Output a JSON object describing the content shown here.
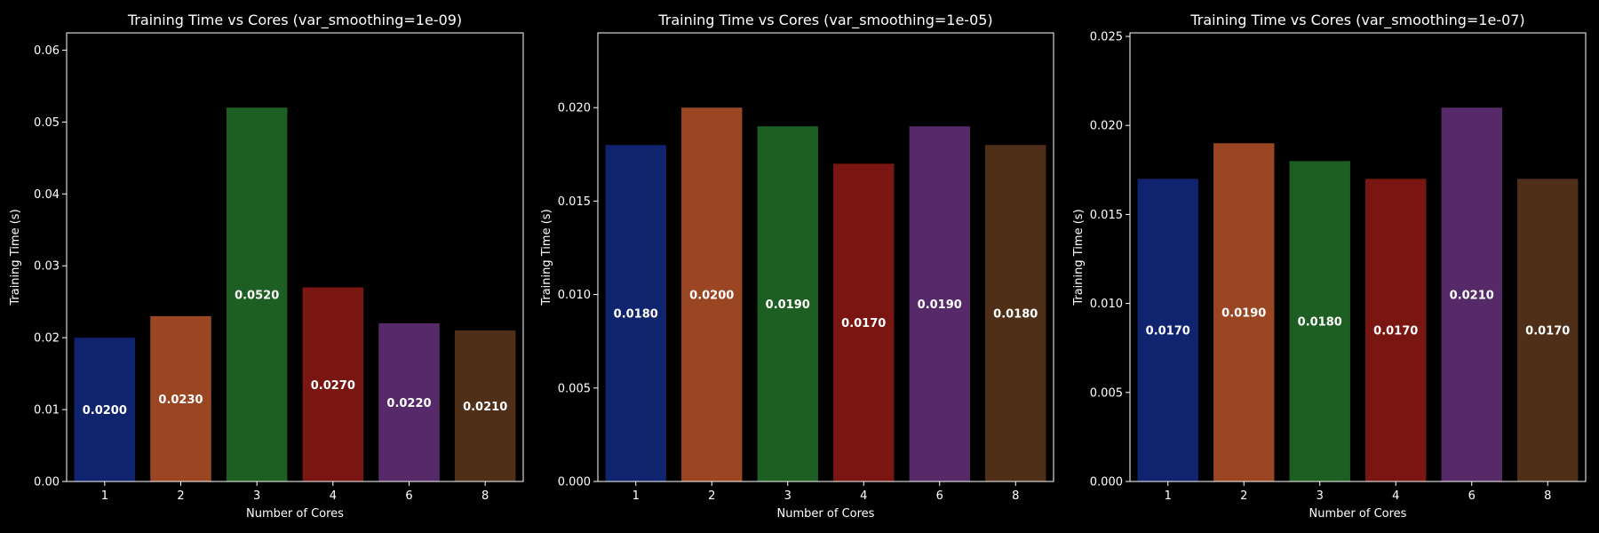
{
  "chart_data": [
    {
      "type": "bar",
      "title": "Training Time vs Cores (var_smoothing=1e-09)",
      "xlabel": "Number of Cores",
      "ylabel": "Training Time (s)",
      "categories": [
        "1",
        "2",
        "3",
        "4",
        "6",
        "8"
      ],
      "values": [
        0.02,
        0.023,
        0.052,
        0.027,
        0.022,
        0.021
      ],
      "data_labels": [
        "0.0200",
        "0.0230",
        "0.0520",
        "0.0270",
        "0.0220",
        "0.0210"
      ],
      "ylim": [
        0,
        0.0624
      ],
      "yticks": [
        0.0,
        0.01,
        0.02,
        0.03,
        0.04,
        0.05,
        0.06
      ],
      "ytick_labels": [
        "0.00",
        "0.01",
        "0.02",
        "0.03",
        "0.04",
        "0.05",
        "0.06"
      ],
      "grid": false
    },
    {
      "type": "bar",
      "title": "Training Time vs Cores (var_smoothing=1e-05)",
      "xlabel": "Number of Cores",
      "ylabel": "Training Time (s)",
      "categories": [
        "1",
        "2",
        "3",
        "4",
        "6",
        "8"
      ],
      "values": [
        0.018,
        0.02,
        0.019,
        0.017,
        0.019,
        0.018
      ],
      "data_labels": [
        "0.0180",
        "0.0200",
        "0.0190",
        "0.0170",
        "0.0190",
        "0.0180"
      ],
      "ylim": [
        0,
        0.024
      ],
      "yticks": [
        0.0,
        0.005,
        0.01,
        0.015,
        0.02
      ],
      "ytick_labels": [
        "0.000",
        "0.005",
        "0.010",
        "0.015",
        "0.020"
      ],
      "grid": false
    },
    {
      "type": "bar",
      "title": "Training Time vs Cores (var_smoothing=1e-07)",
      "xlabel": "Number of Cores",
      "ylabel": "Training Time (s)",
      "categories": [
        "1",
        "2",
        "3",
        "4",
        "6",
        "8"
      ],
      "values": [
        0.017,
        0.019,
        0.018,
        0.017,
        0.021,
        0.017
      ],
      "data_labels": [
        "0.0170",
        "0.0190",
        "0.0180",
        "0.0170",
        "0.0210",
        "0.0170"
      ],
      "ylim": [
        0,
        0.0252
      ],
      "yticks": [
        0.0,
        0.005,
        0.01,
        0.015,
        0.02,
        0.025
      ],
      "ytick_labels": [
        "0.000",
        "0.005",
        "0.010",
        "0.015",
        "0.020",
        "0.025"
      ],
      "grid": false
    }
  ],
  "colors": {
    "background": "#000000",
    "bars": [
      "#0f236e",
      "#9a4622",
      "#1d5e22",
      "#7a1612",
      "#562a69",
      "#4f2f18"
    ]
  }
}
